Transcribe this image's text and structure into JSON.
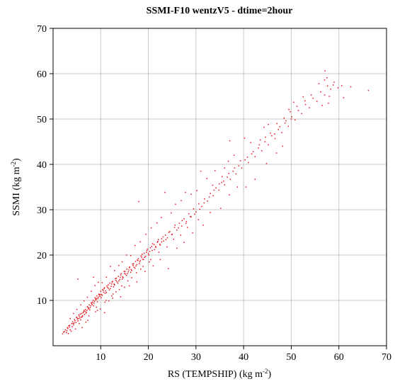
{
  "chart_data": {
    "type": "scatter",
    "title": "SSMI-F10 wentzV5  - dtime=2hour",
    "xlabel_main": "RS (TEMPSHIP) (kg m",
    "xlabel_sup": "-2",
    "xlabel_end": ")",
    "ylabel_main": "SSMI (kg m",
    "ylabel_sup": "-2",
    "ylabel_end": ")",
    "xlim": [
      0,
      70
    ],
    "ylim": [
      0,
      70
    ],
    "xticks": [
      10,
      20,
      30,
      40,
      50,
      60,
      70
    ],
    "yticks": [
      10,
      20,
      30,
      40,
      50,
      60,
      70
    ],
    "grid": true,
    "color": "#e8141e",
    "points": [
      [
        2.0,
        2.6
      ],
      [
        2.4,
        3.1
      ],
      [
        2.8,
        2.9
      ],
      [
        3.1,
        3.8
      ],
      [
        3.3,
        4.4
      ],
      [
        3.6,
        3.5
      ],
      [
        3.9,
        4.9
      ],
      [
        4.1,
        5.3
      ],
      [
        4.3,
        4.6
      ],
      [
        4.5,
        5.8
      ],
      [
        4.8,
        5.1
      ],
      [
        5.0,
        6.2
      ],
      [
        5.2,
        5.5
      ],
      [
        5.4,
        6.8
      ],
      [
        5.6,
        6.1
      ],
      [
        5.8,
        5.7
      ],
      [
        6.0,
        7.1
      ],
      [
        6.2,
        6.6
      ],
      [
        6.4,
        7.5
      ],
      [
        6.6,
        6.9
      ],
      [
        6.8,
        8.0
      ],
      [
        7.0,
        7.4
      ],
      [
        7.2,
        8.6
      ],
      [
        7.4,
        8.1
      ],
      [
        7.6,
        9.0
      ],
      [
        7.8,
        8.4
      ],
      [
        8.0,
        9.5
      ],
      [
        8.2,
        9.1
      ],
      [
        8.4,
        10.0
      ],
      [
        8.6,
        9.4
      ],
      [
        8.8,
        10.6
      ],
      [
        9.0,
        10.1
      ],
      [
        9.2,
        11.0
      ],
      [
        9.4,
        10.4
      ],
      [
        9.6,
        11.4
      ],
      [
        9.8,
        10.9
      ],
      [
        10.0,
        12.0
      ],
      [
        10.2,
        11.3
      ],
      [
        10.4,
        12.4
      ],
      [
        10.6,
        11.8
      ],
      [
        10.8,
        12.8
      ],
      [
        11.0,
        12.1
      ],
      [
        11.3,
        13.2
      ],
      [
        11.6,
        12.7
      ],
      [
        11.9,
        13.8
      ],
      [
        12.2,
        13.1
      ],
      [
        12.5,
        14.2
      ],
      [
        12.8,
        13.6
      ],
      [
        13.1,
        14.8
      ],
      [
        13.4,
        14.1
      ],
      [
        13.7,
        15.3
      ],
      [
        14.0,
        14.6
      ],
      [
        14.3,
        15.9
      ],
      [
        14.6,
        15.2
      ],
      [
        14.9,
        16.4
      ],
      [
        15.2,
        15.8
      ],
      [
        15.5,
        16.9
      ],
      [
        15.8,
        16.3
      ],
      [
        16.1,
        17.4
      ],
      [
        16.4,
        16.8
      ],
      [
        16.7,
        18.0
      ],
      [
        17.0,
        17.3
      ],
      [
        17.3,
        18.6
      ],
      [
        17.6,
        17.9
      ],
      [
        17.9,
        19.2
      ],
      [
        18.2,
        18.5
      ],
      [
        18.5,
        19.8
      ],
      [
        18.8,
        19.1
      ],
      [
        19.1,
        20.4
      ],
      [
        19.4,
        19.7
      ],
      [
        19.7,
        21.0
      ],
      [
        20.0,
        20.3
      ],
      [
        20.4,
        21.6
      ],
      [
        20.8,
        21.0
      ],
      [
        21.2,
        22.3
      ],
      [
        21.6,
        21.7
      ],
      [
        22.0,
        23.0
      ],
      [
        22.4,
        22.4
      ],
      [
        22.8,
        23.6
      ],
      [
        23.2,
        23.1
      ],
      [
        23.6,
        24.4
      ],
      [
        24.0,
        23.8
      ],
      [
        24.5,
        25.2
      ],
      [
        25.0,
        24.6
      ],
      [
        25.5,
        26.1
      ],
      [
        26.0,
        25.5
      ],
      [
        26.5,
        27.0
      ],
      [
        27.0,
        26.4
      ],
      [
        27.5,
        28.0
      ],
      [
        28.0,
        27.4
      ],
      [
        28.5,
        29.1
      ],
      [
        29.0,
        28.4
      ],
      [
        29.5,
        30.2
      ],
      [
        30.0,
        29.5
      ],
      [
        30.6,
        31.3
      ],
      [
        31.2,
        30.7
      ],
      [
        31.8,
        32.4
      ],
      [
        32.4,
        31.9
      ],
      [
        33.0,
        33.6
      ],
      [
        33.6,
        33.1
      ],
      [
        34.2,
        34.8
      ],
      [
        34.8,
        34.3
      ],
      [
        35.4,
        36.0
      ],
      [
        36.0,
        35.5
      ],
      [
        36.6,
        37.2
      ],
      [
        37.2,
        36.7
      ],
      [
        37.8,
        38.5
      ],
      [
        38.4,
        37.9
      ],
      [
        39.0,
        39.7
      ],
      [
        39.6,
        39.2
      ],
      [
        40.3,
        41.0
      ],
      [
        41.0,
        40.4
      ],
      [
        41.7,
        42.3
      ],
      [
        42.4,
        41.7
      ],
      [
        43.1,
        43.6
      ],
      [
        43.8,
        43.0
      ],
      [
        44.5,
        45.0
      ],
      [
        45.2,
        44.3
      ],
      [
        45.9,
        46.3
      ],
      [
        46.6,
        45.7
      ],
      [
        47.3,
        47.7
      ],
      [
        48.0,
        47.0
      ],
      [
        48.7,
        49.1
      ],
      [
        49.4,
        48.4
      ],
      [
        50.1,
        50.5
      ],
      [
        50.8,
        49.8
      ],
      [
        51.5,
        51.9
      ],
      [
        52.2,
        51.2
      ],
      [
        53.0,
        53.2
      ],
      [
        53.8,
        52.5
      ],
      [
        54.6,
        54.6
      ],
      [
        55.4,
        53.9
      ],
      [
        56.2,
        56.0
      ],
      [
        57.0,
        55.3
      ],
      [
        57.6,
        57.3
      ],
      [
        58.3,
        56.6
      ],
      [
        59.0,
        58.1
      ],
      [
        59.8,
        56.9
      ],
      [
        60.6,
        57.4
      ],
      [
        62.5,
        57.1
      ],
      [
        66.2,
        56.3
      ],
      [
        57.1,
        60.6
      ],
      [
        57.5,
        59.1
      ],
      [
        58.0,
        55.0
      ],
      [
        61.0,
        54.7
      ],
      [
        56.5,
        53.0
      ],
      [
        57.8,
        53.5
      ],
      [
        52.5,
        54.9
      ],
      [
        50.5,
        53.7
      ],
      [
        49.5,
        52.1
      ],
      [
        50.0,
        50.0
      ],
      [
        48.5,
        50.2
      ],
      [
        47.0,
        49.0
      ],
      [
        45.2,
        48.8
      ],
      [
        44.3,
        48.2
      ],
      [
        46.5,
        46.7
      ],
      [
        43.5,
        45.4
      ],
      [
        41.5,
        44.8
      ],
      [
        40.2,
        45.8
      ],
      [
        38.0,
        42.0
      ],
      [
        37.1,
        45.2
      ],
      [
        36.8,
        40.7
      ],
      [
        36.0,
        39.2
      ],
      [
        35.5,
        37.3
      ],
      [
        34.0,
        38.6
      ],
      [
        33.5,
        35.4
      ],
      [
        32.3,
        36.9
      ],
      [
        31.0,
        38.5
      ],
      [
        30.2,
        34.2
      ],
      [
        29.0,
        33.4
      ],
      [
        27.8,
        33.8
      ],
      [
        26.9,
        32.0
      ],
      [
        25.7,
        31.2
      ],
      [
        24.8,
        29.3
      ],
      [
        23.5,
        33.8
      ],
      [
        22.7,
        28.3
      ],
      [
        21.8,
        27.1
      ],
      [
        20.6,
        26.0
      ],
      [
        18.0,
        31.8
      ],
      [
        19.5,
        24.6
      ],
      [
        18.3,
        22.9
      ],
      [
        17.2,
        22.1
      ],
      [
        16.3,
        19.9
      ],
      [
        15.4,
        20.0
      ],
      [
        14.5,
        18.5
      ],
      [
        13.8,
        17.7
      ],
      [
        12.9,
        16.6
      ],
      [
        12.0,
        17.5
      ],
      [
        11.2,
        15.1
      ],
      [
        10.3,
        13.9
      ],
      [
        9.5,
        14.0
      ],
      [
        8.8,
        13.3
      ],
      [
        8.0,
        12.0
      ],
      [
        7.2,
        10.7
      ],
      [
        6.5,
        9.9
      ],
      [
        5.8,
        9.0
      ],
      [
        5.0,
        8.0
      ],
      [
        4.3,
        7.1
      ],
      [
        3.6,
        6.0
      ],
      [
        5.2,
        14.7
      ],
      [
        8.5,
        15.1
      ],
      [
        10.8,
        7.3
      ],
      [
        12.5,
        10.5
      ],
      [
        14.2,
        10.8
      ],
      [
        16.0,
        13.2
      ],
      [
        17.6,
        14.1
      ],
      [
        19.3,
        16.4
      ],
      [
        21.0,
        17.6
      ],
      [
        22.5,
        19.0
      ],
      [
        24.2,
        17.0
      ],
      [
        26.0,
        21.5
      ],
      [
        27.5,
        22.8
      ],
      [
        29.3,
        24.9
      ],
      [
        31.5,
        26.6
      ],
      [
        33.0,
        29.4
      ],
      [
        35.2,
        30.3
      ],
      [
        37.0,
        33.3
      ],
      [
        38.7,
        35.0
      ],
      [
        40.5,
        35.0
      ],
      [
        42.4,
        36.7
      ],
      [
        44.8,
        40.2
      ],
      [
        46.9,
        42.5
      ],
      [
        48.2,
        44.0
      ],
      [
        6.1,
        4.0
      ],
      [
        7.3,
        5.6
      ],
      [
        8.9,
        7.5
      ],
      [
        9.9,
        8.1
      ],
      [
        11.7,
        9.9
      ],
      [
        13.2,
        11.9
      ],
      [
        15.0,
        12.9
      ],
      [
        3.2,
        2.7
      ],
      [
        4.7,
        3.7
      ],
      [
        6.9,
        5.2
      ],
      [
        9.3,
        7.8
      ],
      [
        10.9,
        9.6
      ],
      [
        12.3,
        11.0
      ],
      [
        13.9,
        12.4
      ],
      [
        15.7,
        14.3
      ],
      [
        17.5,
        16.1
      ],
      [
        18.9,
        17.5
      ],
      [
        20.5,
        19.0
      ],
      [
        22.2,
        20.6
      ],
      [
        23.9,
        21.8
      ],
      [
        25.3,
        23.5
      ],
      [
        26.8,
        24.4
      ],
      [
        28.2,
        26.1
      ],
      [
        30.5,
        27.8
      ],
      [
        2.6,
        3.5
      ],
      [
        3.0,
        4.0
      ],
      [
        3.5,
        4.5
      ],
      [
        4.0,
        4.2
      ],
      [
        4.4,
        5.0
      ],
      [
        4.9,
        6.3
      ],
      [
        5.3,
        6.0
      ],
      [
        5.7,
        7.0
      ],
      [
        6.1,
        6.4
      ],
      [
        6.5,
        7.8
      ],
      [
        6.9,
        7.2
      ],
      [
        7.3,
        8.5
      ],
      [
        7.7,
        7.9
      ],
      [
        8.1,
        9.3
      ],
      [
        8.5,
        8.8
      ],
      [
        8.9,
        10.3
      ],
      [
        9.3,
        9.7
      ],
      [
        9.7,
        11.2
      ],
      [
        10.1,
        10.6
      ],
      [
        10.5,
        12.2
      ],
      [
        10.9,
        11.6
      ],
      [
        11.4,
        12.9
      ],
      [
        11.8,
        12.3
      ],
      [
        12.3,
        13.6
      ],
      [
        12.7,
        13.0
      ],
      [
        13.2,
        14.4
      ],
      [
        13.6,
        13.8
      ],
      [
        14.1,
        15.1
      ],
      [
        14.5,
        14.7
      ],
      [
        15.0,
        16.0
      ],
      [
        15.4,
        15.5
      ],
      [
        15.9,
        16.7
      ],
      [
        16.3,
        16.2
      ],
      [
        16.8,
        17.7
      ],
      [
        17.2,
        17.1
      ],
      [
        17.7,
        18.9
      ],
      [
        18.1,
        18.1
      ],
      [
        18.6,
        19.5
      ],
      [
        19.0,
        19.0
      ],
      [
        19.6,
        20.6
      ],
      [
        20.1,
        20.0
      ],
      [
        20.7,
        21.9
      ],
      [
        21.3,
        21.2
      ],
      [
        21.9,
        22.8
      ],
      [
        22.5,
        22.2
      ],
      [
        23.1,
        24.0
      ],
      [
        23.7,
        23.4
      ],
      [
        24.3,
        25.0
      ],
      [
        24.9,
        24.5
      ],
      [
        25.6,
        26.6
      ],
      [
        26.3,
        26.0
      ],
      [
        27.1,
        27.6
      ],
      [
        27.9,
        27.0
      ],
      [
        28.8,
        28.5
      ],
      [
        29.7,
        29.0
      ],
      [
        30.8,
        30.1
      ],
      [
        31.7,
        31.5
      ],
      [
        32.8,
        32.8
      ],
      [
        33.8,
        34.3
      ],
      [
        34.9,
        35.7
      ],
      [
        35.8,
        36.3
      ],
      [
        36.9,
        38.0
      ],
      [
        38.1,
        39.2
      ],
      [
        39.3,
        40.8
      ],
      [
        40.8,
        41.6
      ],
      [
        42.0,
        42.8
      ],
      [
        43.3,
        44.3
      ],
      [
        44.6,
        46.0
      ],
      [
        45.6,
        46.9
      ],
      [
        47.6,
        48.3
      ],
      [
        48.9,
        49.6
      ],
      [
        49.8,
        51.6
      ],
      [
        51.2,
        52.8
      ],
      [
        52.9,
        54.0
      ],
      [
        54.2,
        55.3
      ],
      [
        55.8,
        57.8
      ],
      [
        57.0,
        58.6
      ],
      [
        58.8,
        57.5
      ],
      [
        3.8,
        3.2
      ],
      [
        5.5,
        4.9
      ],
      [
        7.5,
        6.6
      ],
      [
        9.1,
        8.5
      ],
      [
        11.1,
        10.0
      ],
      [
        12.6,
        11.4
      ],
      [
        14.4,
        13.2
      ],
      [
        16.5,
        15.0
      ],
      [
        18.4,
        16.9
      ],
      [
        20.2,
        18.5
      ],
      [
        2.2,
        3.0
      ],
      [
        2.9,
        3.3
      ],
      [
        3.4,
        4.1
      ],
      [
        4.2,
        4.9
      ],
      [
        4.6,
        5.5
      ],
      [
        5.1,
        5.9
      ],
      [
        5.5,
        6.5
      ],
      [
        5.9,
        6.3
      ],
      [
        6.3,
        7.3
      ],
      [
        6.7,
        7.6
      ],
      [
        7.1,
        7.8
      ],
      [
        7.5,
        8.3
      ],
      [
        7.9,
        8.8
      ],
      [
        8.3,
        9.6
      ],
      [
        8.7,
        9.8
      ],
      [
        9.1,
        10.4
      ],
      [
        9.5,
        10.7
      ],
      [
        9.9,
        11.3
      ],
      [
        10.3,
        11.1
      ],
      [
        10.7,
        12.6
      ],
      [
        11.2,
        11.7
      ],
      [
        11.6,
        13.4
      ],
      [
        12.0,
        12.6
      ],
      [
        12.4,
        14.0
      ],
      [
        12.9,
        13.4
      ],
      [
        13.3,
        14.9
      ],
      [
        13.8,
        14.3
      ],
      [
        14.2,
        15.6
      ],
      [
        14.7,
        15.0
      ],
      [
        15.1,
        16.4
      ],
      [
        15.6,
        15.9
      ],
      [
        16.0,
        17.2
      ],
      [
        16.5,
        16.6
      ],
      [
        16.9,
        18.1
      ],
      [
        17.4,
        17.6
      ],
      [
        17.8,
        18.8
      ],
      [
        18.3,
        18.8
      ],
      [
        18.7,
        20.2
      ],
      [
        19.2,
        19.5
      ],
      [
        19.8,
        21.3
      ],
      [
        20.3,
        20.8
      ],
      [
        20.9,
        22.5
      ],
      [
        21.5,
        21.9
      ],
      [
        22.1,
        23.4
      ],
      [
        22.8,
        22.9
      ]
    ]
  }
}
